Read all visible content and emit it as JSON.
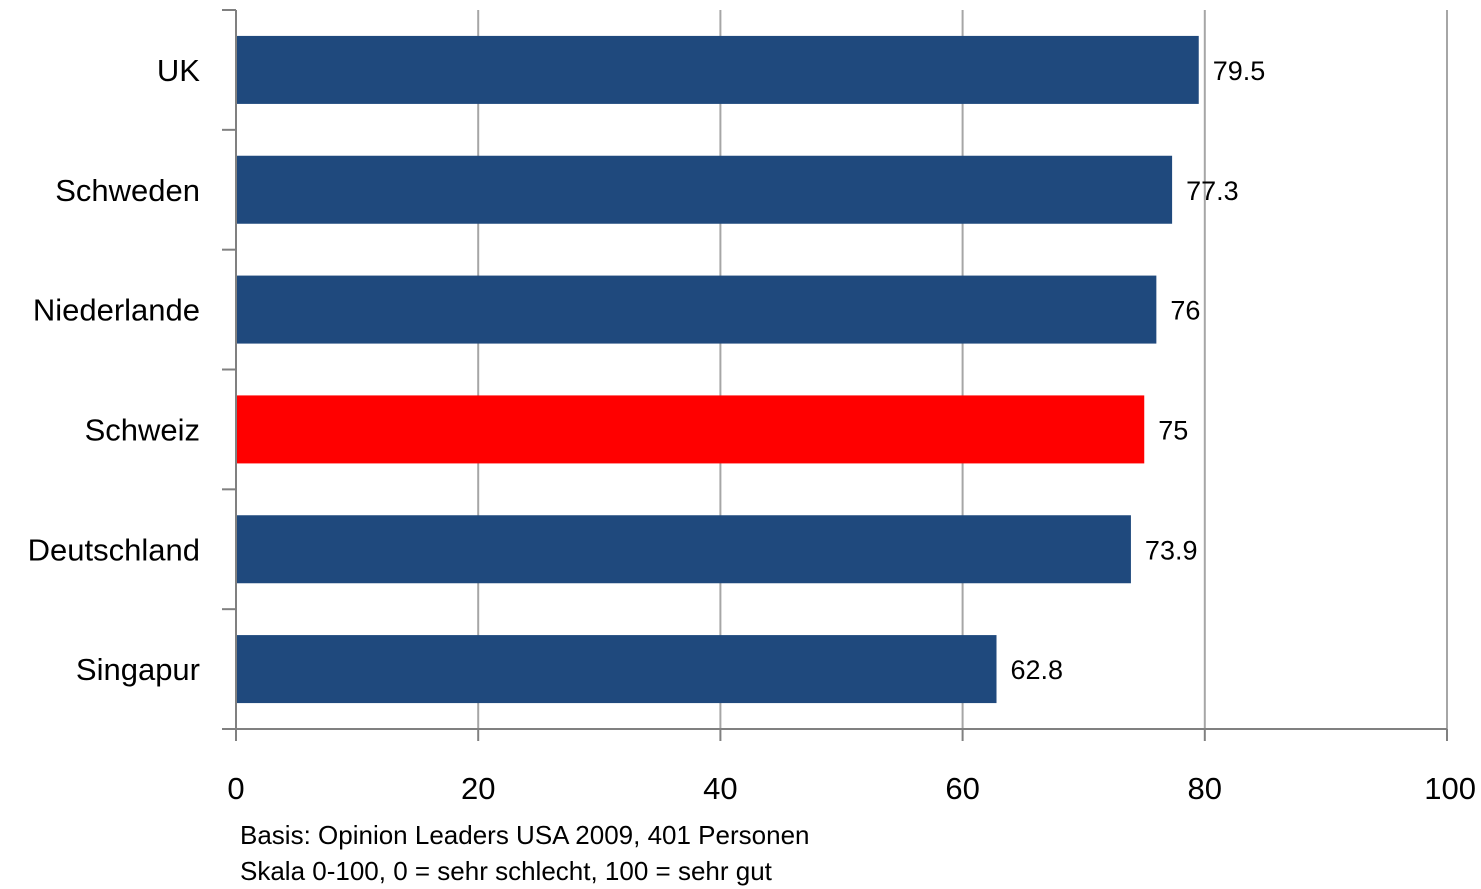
{
  "chart_data": {
    "type": "bar",
    "orientation": "horizontal",
    "categories": [
      "UK",
      "Schweden",
      "Niederlande",
      "Schweiz",
      "Deutschland",
      "Singapur"
    ],
    "values": [
      79.5,
      77.3,
      76,
      75,
      73.9,
      62.8
    ],
    "value_labels": [
      "79.5",
      "77.3",
      "76",
      "75",
      "73.9",
      "62.8"
    ],
    "highlight_category": "Schweiz",
    "xlim": [
      0,
      100
    ],
    "xticks": [
      0,
      20,
      40,
      60,
      80,
      100
    ],
    "grid": "vertical",
    "legend": "none",
    "colors": {
      "bar": "#1F497D",
      "highlight": "#FF0000",
      "grid": "#A6A6A6",
      "axis": "#808080"
    }
  },
  "notes": {
    "line1": "Basis: Opinion Leaders USA  2009, 401 Personen",
    "line2": "Skala 0-100, 0 = sehr schlecht, 100 = sehr gut"
  }
}
